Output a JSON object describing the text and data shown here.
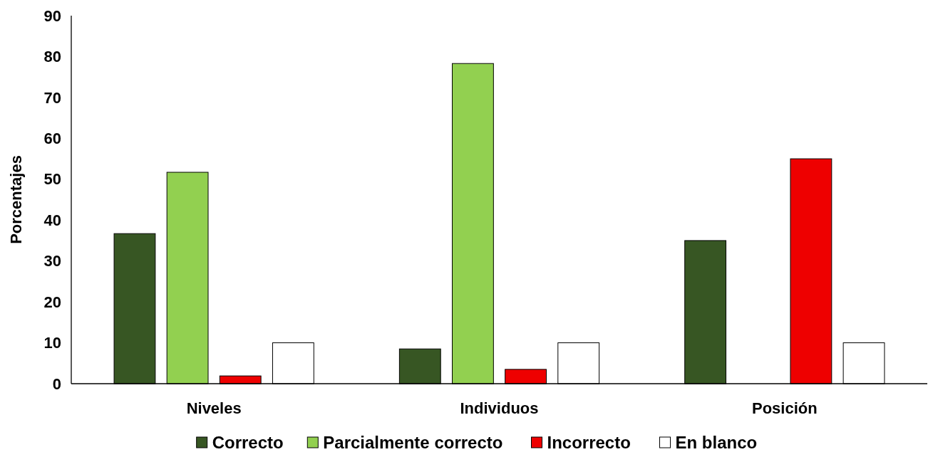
{
  "chart_data": {
    "type": "bar",
    "ylabel": "Porcentajes",
    "categories": [
      "Niveles",
      "Individuos",
      "Posición"
    ],
    "series": [
      {
        "name": "Correcto",
        "color": "#375623",
        "values": [
          36.7,
          8.5,
          35
        ]
      },
      {
        "name": "Parcialmente correcto",
        "color": "#92d050",
        "values": [
          51.7,
          78.3,
          0
        ]
      },
      {
        "name": "Incorrecto",
        "color": "#ee0000",
        "values": [
          1.9,
          3.5,
          55
        ]
      },
      {
        "name": "En blanco",
        "color": "#ffffff",
        "values": [
          10,
          10,
          10
        ]
      }
    ],
    "ylim": [
      0,
      90
    ],
    "yticks": [
      0,
      10,
      20,
      30,
      40,
      50,
      60,
      70,
      80,
      90
    ],
    "grid": false,
    "legend": "bottom"
  }
}
